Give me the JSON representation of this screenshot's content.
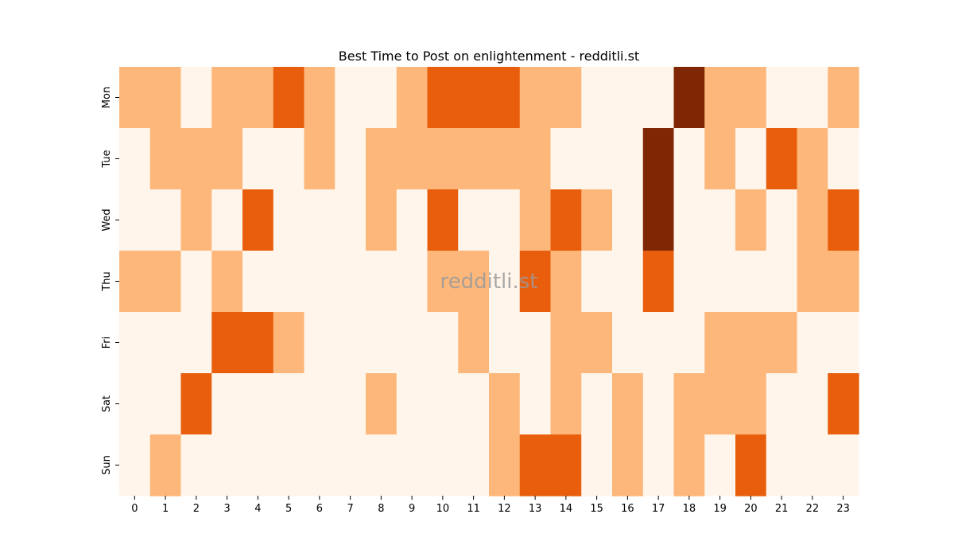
{
  "chart_data": {
    "type": "heatmap",
    "title": "Best Time to Post on enlightenment - redditli.st",
    "watermark": "redditli.st",
    "xlabel": "",
    "ylabel": "",
    "x_categories": [
      "0",
      "1",
      "2",
      "3",
      "4",
      "5",
      "6",
      "7",
      "8",
      "9",
      "10",
      "11",
      "12",
      "13",
      "14",
      "15",
      "16",
      "17",
      "18",
      "19",
      "20",
      "21",
      "22",
      "23"
    ],
    "y_categories": [
      "Mon",
      "Tue",
      "Wed",
      "Thu",
      "Fri",
      "Sat",
      "Sun"
    ],
    "values": [
      [
        1,
        1,
        0,
        1,
        1,
        2,
        1,
        0,
        0,
        1,
        2,
        2,
        2,
        1,
        1,
        0,
        0,
        0,
        3,
        1,
        1,
        0,
        0,
        1
      ],
      [
        0,
        1,
        1,
        1,
        0,
        0,
        1,
        0,
        1,
        1,
        1,
        1,
        1,
        1,
        0,
        0,
        0,
        3,
        0,
        1,
        0,
        2,
        1,
        0
      ],
      [
        0,
        0,
        1,
        0,
        2,
        0,
        0,
        0,
        1,
        0,
        2,
        0,
        0,
        1,
        2,
        1,
        0,
        3,
        0,
        0,
        1,
        0,
        1,
        2
      ],
      [
        1,
        1,
        0,
        1,
        0,
        0,
        0,
        0,
        0,
        0,
        1,
        1,
        0,
        2,
        1,
        0,
        0,
        2,
        0,
        0,
        0,
        0,
        1,
        1
      ],
      [
        0,
        0,
        0,
        2,
        2,
        1,
        0,
        0,
        0,
        0,
        0,
        1,
        0,
        0,
        1,
        1,
        0,
        0,
        0,
        1,
        1,
        1,
        0,
        0
      ],
      [
        0,
        0,
        2,
        0,
        0,
        0,
        0,
        0,
        1,
        0,
        0,
        0,
        1,
        0,
        1,
        0,
        1,
        0,
        1,
        1,
        1,
        0,
        0,
        2
      ],
      [
        0,
        1,
        0,
        0,
        0,
        0,
        0,
        0,
        0,
        0,
        0,
        0,
        1,
        2,
        2,
        0,
        1,
        0,
        1,
        0,
        2,
        0,
        0,
        0
      ]
    ],
    "value_range": [
      0,
      3
    ],
    "colormap": [
      "#fff5eb",
      "#fdb77a",
      "#e95e0d",
      "#7f2704"
    ],
    "grid": false,
    "legend": "none"
  }
}
